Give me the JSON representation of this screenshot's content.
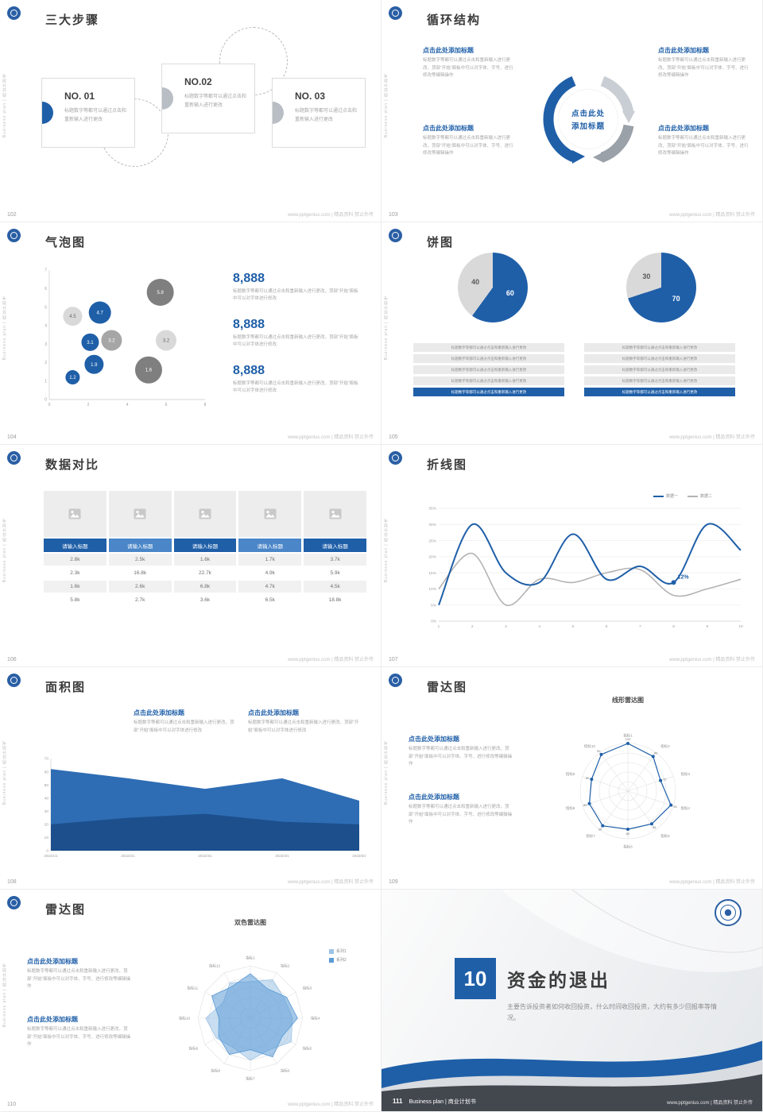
{
  "meta": {
    "side_text": "Business plan | 商业计划书",
    "watermark": "www.pptgenius.com | 精品资料 禁止外传",
    "brand_blue": "#1f5fa8"
  },
  "slides": {
    "s102": {
      "page": "102",
      "title": "三大步骤",
      "steps": [
        {
          "no": "NO. 01",
          "desc": "标题数字等都可以通过点击和重新输入进行更改"
        },
        {
          "no": "NO.02",
          "desc": "标题数字等都可以通过点击和重新输入进行更改"
        },
        {
          "no": "NO. 03",
          "desc": "标题数字等都可以通过点击和重新输入进行更改"
        }
      ]
    },
    "s103": {
      "page": "103",
      "title": "循环结构",
      "center_line1": "点击此处",
      "center_line2": "添加标题",
      "blocks": [
        {
          "heading": "点击此处添加标题",
          "body": "标题数字等都可以通过点击和重新输入进行更改，顶部“开始”面板中可以对字体、字号、进行修改等编辑操作"
        },
        {
          "heading": "点击此处添加标题",
          "body": "标题数字等都可以通过点击和重新输入进行更改，顶部“开始”面板中可以对字体、字号、进行修改等编辑操作"
        },
        {
          "heading": "点击此处添加标题",
          "body": "标题数字等都可以通过点击和重新输入进行更改，顶部“开始”面板中可以对字体、字号、进行修改等编辑操作"
        },
        {
          "heading": "点击此处添加标题",
          "body": "标题数字等都可以通过点击和重新输入进行更改，顶部“开始”面板中可以对字体、字号、进行修改等编辑操作"
        }
      ]
    },
    "s104": {
      "page": "104",
      "title": "气泡图",
      "chart": {
        "type": "bubble",
        "xlim": [
          0,
          8
        ],
        "ylim": [
          0,
          7
        ],
        "xticks": [
          0,
          2,
          4,
          6,
          8
        ],
        "yticks": [
          0,
          1,
          2,
          3,
          4,
          5,
          6,
          7
        ],
        "bubbles": [
          {
            "x": 1.2,
            "y": 4.5,
            "r": 12,
            "label": "4.5",
            "color": "#d9d9d9",
            "text_color": "#666666"
          },
          {
            "x": 2.6,
            "y": 4.7,
            "r": 14,
            "label": "4.7",
            "color": "#1f5fa8",
            "text_color": "#ffffff"
          },
          {
            "x": 5.7,
            "y": 5.8,
            "r": 17,
            "label": "5.8",
            "color": "#7f7f7f",
            "text_color": "#ffffff"
          },
          {
            "x": 2.1,
            "y": 3.1,
            "r": 11,
            "label": "3.1",
            "color": "#1f5fa8",
            "text_color": "#ffffff"
          },
          {
            "x": 3.2,
            "y": 3.2,
            "r": 13,
            "label": "3.2",
            "color": "#a6a6a6",
            "text_color": "#ffffff"
          },
          {
            "x": 6.0,
            "y": 3.2,
            "r": 13,
            "label": "3.2",
            "color": "#d9d9d9",
            "text_color": "#666666"
          },
          {
            "x": 2.3,
            "y": 1.9,
            "r": 12,
            "label": "1.9",
            "color": "#1f5fa8",
            "text_color": "#ffffff"
          },
          {
            "x": 5.1,
            "y": 1.6,
            "r": 17,
            "label": "1.6",
            "color": "#7f7f7f",
            "text_color": "#ffffff"
          },
          {
            "x": 1.2,
            "y": 1.2,
            "r": 9,
            "label": "1.2",
            "color": "#1f5fa8",
            "text_color": "#ffffff"
          }
        ]
      },
      "stats": [
        {
          "value": "8,888",
          "desc": "标题数字等都可以通过点击和重新输入进行更改，顶部“开始”面板中可以对字体进行修改"
        },
        {
          "value": "8,888",
          "desc": "标题数字等都可以通过点击和重新输入进行更改，顶部“开始”面板中可以对字体进行修改"
        },
        {
          "value": "8,888",
          "desc": "标题数字等都可以通过点击和重新输入进行更改，顶部“开始”面板中可以对字体进行修改"
        }
      ]
    },
    "s105": {
      "page": "105",
      "title": "饼图",
      "pies": [
        {
          "slices": [
            {
              "label": "60",
              "value": 60,
              "color": "#1f5fa8",
              "label_color": "#ffffff"
            },
            {
              "label": "40",
              "value": 40,
              "color": "#d9d9d9",
              "label_color": "#595959"
            }
          ]
        },
        {
          "slices": [
            {
              "label": "70",
              "value": 70,
              "color": "#1f5fa8",
              "label_color": "#ffffff"
            },
            {
              "label": "30",
              "value": 30,
              "color": "#d9d9d9",
              "label_color": "#595959"
            }
          ]
        }
      ],
      "bar_rows": [
        "标题数字等都可以通过点击和重新输入进行更改",
        "标题数字等都可以通过点击和重新输入进行更改",
        "标题数字等都可以通过点击和重新输入进行更改",
        "标题数字等都可以通过点击和重新输入进行更改",
        "标题数字等都可以通过点击和重新输入进行更改"
      ]
    },
    "s106": {
      "page": "106",
      "title": "数据对比",
      "table": {
        "headers": [
          "请输入标题",
          "请输入标题",
          "请输入标题",
          "请输入标题",
          "请输入标题"
        ],
        "rows": [
          [
            "2.8k",
            "2.5k",
            "1.6k",
            "1.7k",
            "3.7k"
          ],
          [
            "2.3k",
            "16.8k",
            "22.7k",
            "4.9k",
            "5.9k"
          ],
          [
            "1.6k",
            "2.6k",
            "6.8k",
            "4.7k",
            "4.5k"
          ],
          [
            "5.8k",
            "2.7k",
            "3.6k",
            "6.5k",
            "18.8k"
          ]
        ]
      }
    },
    "s107": {
      "page": "107",
      "title": "折线图",
      "chart": {
        "type": "line",
        "x": [
          1,
          2,
          3,
          4,
          5,
          6,
          7,
          8,
          9,
          10
        ],
        "ylim": [
          0,
          35
        ],
        "yticks": [
          "0%",
          "5%",
          "10%",
          "15%",
          "20%",
          "25%",
          "30%",
          "35%"
        ],
        "series": [
          {
            "name": "数据一",
            "color": "#1f5fa8",
            "values": [
              5,
              30,
              15,
              12,
              27,
              13,
              17,
              12,
              30,
              22
            ]
          },
          {
            "name": "数据二",
            "color": "#b3b3b3",
            "values": [
              10,
              21,
              5,
              13,
              12,
              15,
              16,
              8,
              10,
              13
            ]
          }
        ],
        "annotation": {
          "series": 0,
          "x_index": 7,
          "label": "12%"
        }
      }
    },
    "s108": {
      "page": "108",
      "title": "面积图",
      "blocks": [
        {
          "heading": "点击此处添加标题",
          "body": "标题数字等都可以通过点击和重新输入进行更改，顶部“开始”面板中可以对字体进行修改"
        },
        {
          "heading": "点击此处添加标题",
          "body": "标题数字等都可以通过点击和重新输入进行更改，顶部“开始”面板中可以对字体进行修改"
        }
      ],
      "chart": {
        "type": "area",
        "x": [
          "2022/1/1",
          "2022/2/1",
          "2022/3/1",
          "2022/4/1",
          "2022/5/1"
        ],
        "ylim": [
          0,
          70
        ],
        "yticks": [
          0,
          10,
          20,
          30,
          40,
          50,
          60,
          70
        ],
        "series": [
          {
            "color": "#2e6db4",
            "values": [
              62,
              55,
              47,
              55,
              38
            ]
          },
          {
            "color": "#1c4f8c",
            "values": [
              20,
              25,
              28,
              22,
              20
            ]
          }
        ]
      }
    },
    "s109": {
      "page": "109",
      "title": "雷达图",
      "chart_title": "线形雷达图",
      "blocks": [
        {
          "heading": "点击此处添加标题",
          "body": "标题数字等都可以通过点击和重新输入进行更改，顶部“开始”面板中可以对字体、字号、进行修改等编辑操作"
        },
        {
          "heading": "点击此处添加标题",
          "body": "标题数字等都可以通过点击和重新输入进行更改，顶部“开始”面板中可以对字体、字号、进行修改等编辑操作"
        }
      ],
      "chart": {
        "type": "radar",
        "grid": "circle",
        "max": 100,
        "axes": [
          "指标1",
          "指标2",
          "指标3",
          "指标4",
          "指标5",
          "指标6",
          "指标7",
          "指标8",
          "指标9",
          "指标10"
        ],
        "series": [
          {
            "color": "#1f5fa8",
            "fill": false,
            "markers": true,
            "show_values": true,
            "values": [
              100,
              90,
              72,
              95,
              85,
              80,
              90,
              85,
              80,
              95
            ]
          }
        ]
      }
    },
    "s110": {
      "page": "110",
      "title": "雷达图",
      "chart_title": "双色雷达图",
      "legend": [
        "系列1",
        "系列2"
      ],
      "blocks": [
        {
          "heading": "点击此处添加标题",
          "body": "标题数字等都可以通过点击和重新输入进行更改，顶部“开始”面板中可以对字体、字号、进行修改等编辑操作"
        },
        {
          "heading": "点击此处添加标题",
          "body": "标题数字等都可以通过点击和重新输入进行更改，顶部“开始”面板中可以对字体、字号、进行修改等编辑操作"
        }
      ],
      "chart": {
        "type": "radar",
        "grid": "polygon",
        "max": 100,
        "axes": [
          "指标1",
          "指标2",
          "指标3",
          "指标4",
          "指标5",
          "指标6",
          "指标7",
          "指标8",
          "指标9",
          "指标10",
          "指标11",
          "指标12"
        ],
        "series": [
          {
            "name": "系列1",
            "color": "#9dc3e6",
            "values": [
              70,
              85,
              75,
              80,
              90,
              70,
              80,
              65,
              75,
              85,
              60,
              78
            ]
          },
          {
            "name": "系列2",
            "color": "#5b9bd5",
            "values": [
              85,
              65,
              80,
              90,
              70,
              85,
              60,
              80,
              70,
              60,
              85,
              70
            ]
          }
        ]
      }
    },
    "s111": {
      "page": "111",
      "section_number": "10",
      "section_title": "资金的退出",
      "section_desc": "主要告诉投资者如何收回投资，什么时间收回投资，大约有多少回报率等情况。",
      "footer_text": "Business plan | 商业计划书"
    }
  }
}
